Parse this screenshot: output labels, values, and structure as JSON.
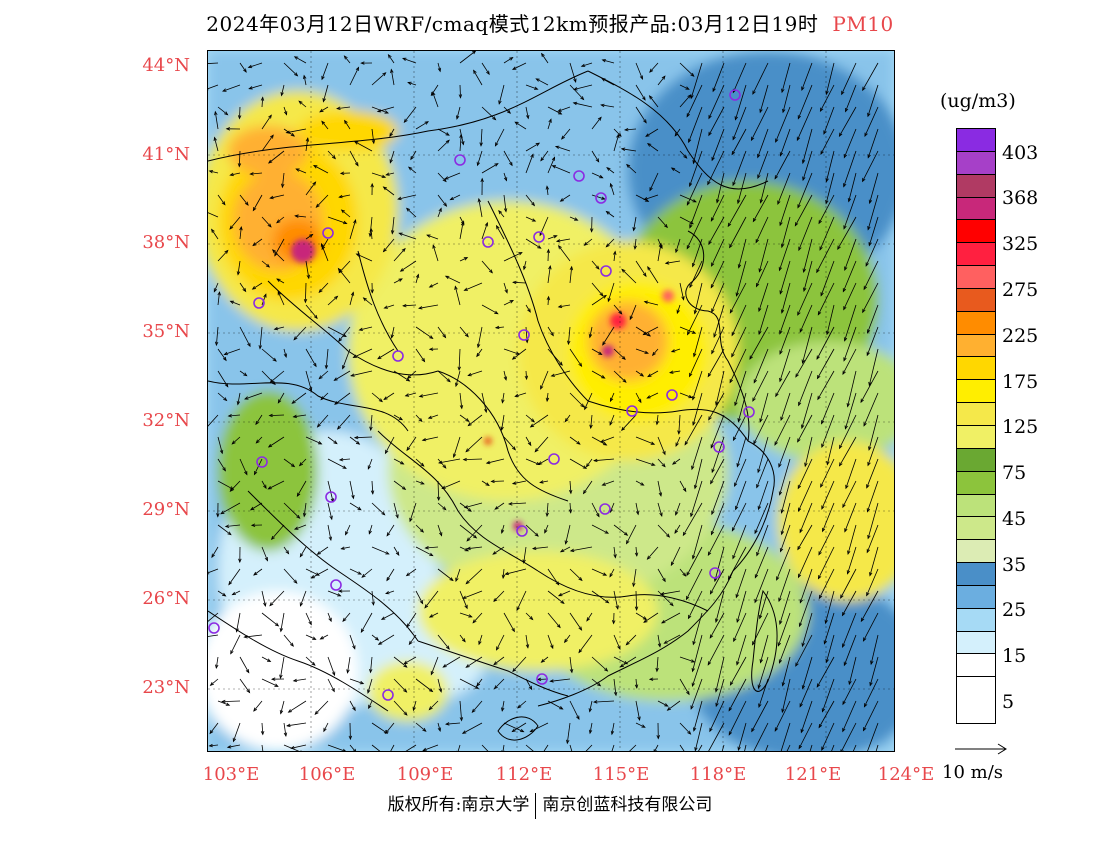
{
  "title": {
    "main": "2024年03月12日WRF/cmaq模式12km预报产品:03月12日19时",
    "species": "PM10",
    "species_color": "#e8474b"
  },
  "map": {
    "lat_labels": [
      "44°N",
      "41°N",
      "38°N",
      "35°N",
      "32°N",
      "29°N",
      "26°N",
      "23°N"
    ],
    "lon_labels": [
      "103°E",
      "106°E",
      "109°E",
      "112°E",
      "115°E",
      "118°E",
      "121°E",
      "124°E"
    ],
    "station_marker_color": "#8b2be2",
    "land_fill_note": "PM10 shaded field"
  },
  "legend": {
    "unit": "(ug/m3)",
    "colors": [
      "#8a2be2",
      "#a640c8",
      "#b03a63",
      "#c8287a",
      "#ff0000",
      "#ff2040",
      "#ff6060",
      "#e85a1e",
      "#ff8c00",
      "#ffb030",
      "#ffd700",
      "#ffee00",
      "#f5e84a",
      "#f0f065",
      "#6aa832",
      "#8cc43c",
      "#bce27a",
      "#cde88a",
      "#dcecb4",
      "#4a8fc8",
      "#6baee0",
      "#a6daf5",
      "#d4f0fc",
      "#ffffff"
    ],
    "labels": [
      "403",
      "368",
      "325",
      "275",
      "225",
      "175",
      "125",
      "75",
      "45",
      "35",
      "25",
      "15",
      "5"
    ]
  },
  "vector_legend": {
    "label": "10 m/s"
  },
  "footer": {
    "left": "版权所有:南京大学",
    "right": "南京创蓝科技有限公司"
  }
}
